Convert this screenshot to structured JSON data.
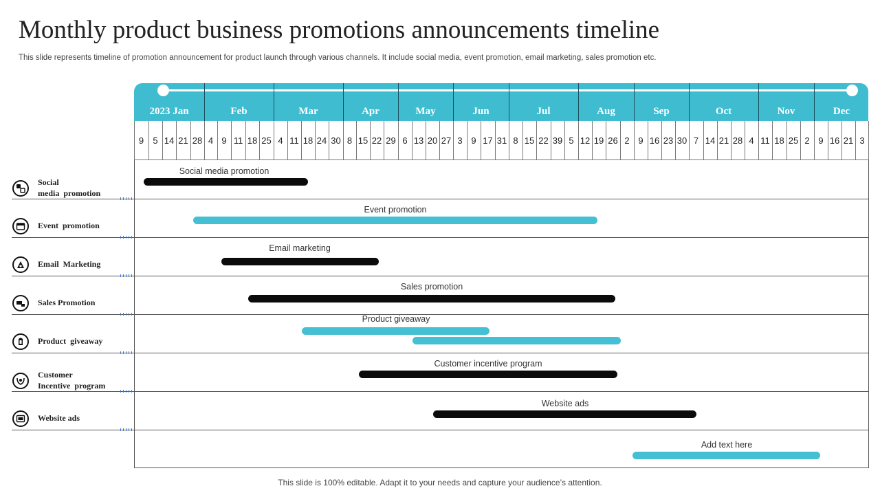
{
  "title": "Monthly product business promotions announcements timeline",
  "subtitle": "This slide represents timeline of promotion announcement for product launch through various channels. It include social media, event promotion, email marketing, sales promotion etc.",
  "footer": "This slide is 100% editable. Adapt it to your needs and capture your audience’s attention.",
  "colors": {
    "accent": "#3fbcd0",
    "bar_dark": "#0b0b0b",
    "bar_teal": "#45bfd3"
  },
  "months": [
    "2023 Jan",
    "Feb",
    "Mar",
    "Apr",
    "May",
    "Jun",
    "Jul",
    "Aug",
    "Sep",
    "Oct",
    "Nov",
    "Dec"
  ],
  "dates": [
    "9",
    "5",
    "14",
    "21",
    "28",
    "4",
    "9",
    "11",
    "18",
    "25",
    "4",
    "11",
    "18",
    "24",
    "30",
    "8",
    "15",
    "22",
    "29",
    "6",
    "13",
    "20",
    "27",
    "3",
    "9",
    "17",
    "31",
    "8",
    "15",
    "22",
    "39",
    "5",
    "12",
    "19",
    "26",
    "2",
    "9",
    "16",
    "23",
    "30",
    "7",
    "14",
    "21",
    "28",
    "4",
    "11",
    "18",
    "25",
    "2",
    "9",
    "16",
    "21",
    "3"
  ],
  "categories": [
    {
      "lines": [
        "Social",
        "media  promotion"
      ],
      "icon": "social-media-icon"
    },
    {
      "lines": [
        "Event  promotion"
      ],
      "icon": "calendar-icon"
    },
    {
      "lines": [
        "Email  Marketing"
      ],
      "icon": "email-icon"
    },
    {
      "lines": [
        "Sales Promotion"
      ],
      "icon": "sales-icon"
    },
    {
      "lines": [
        "Product  giveaway"
      ],
      "icon": "gift-icon"
    },
    {
      "lines": [
        "Customer",
        "Incentive  program"
      ],
      "icon": "incentive-icon"
    },
    {
      "lines": [
        "Website ads"
      ],
      "icon": "website-icon"
    }
  ],
  "bars": [
    {
      "label": "Social media promotion",
      "color": "black"
    },
    {
      "label": "Event promotion",
      "color": "teal"
    },
    {
      "label": "Email marketing",
      "color": "black"
    },
    {
      "label": "Sales promotion",
      "color": "black"
    },
    {
      "label": "Product giveaway",
      "color": "teal"
    },
    {
      "label": "",
      "color": "teal"
    },
    {
      "label": "Customer incentive program",
      "color": "black"
    },
    {
      "label": "Website ads",
      "color": "black"
    },
    {
      "label": "Add text here",
      "color": "teal"
    }
  ]
}
